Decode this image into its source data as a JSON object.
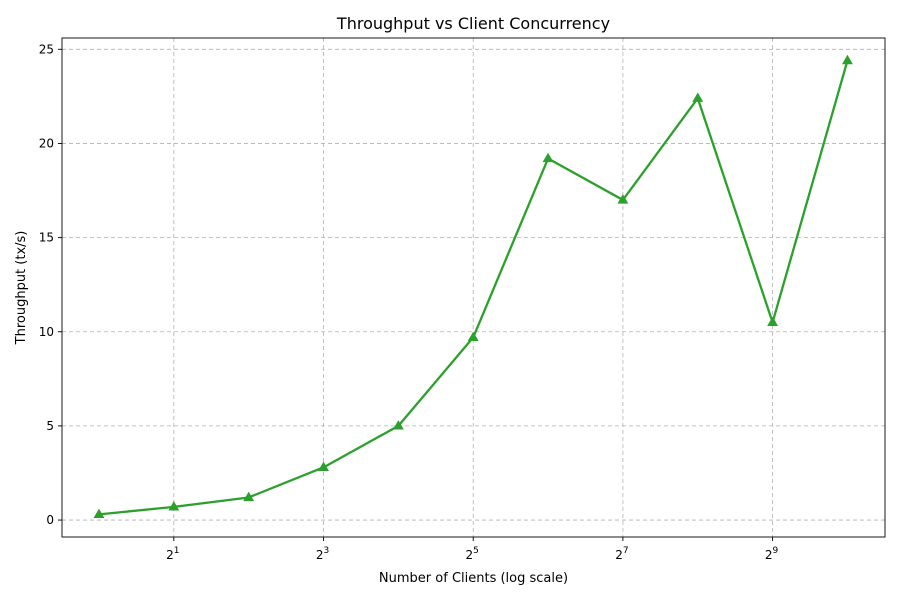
{
  "chart_data": {
    "type": "line",
    "title": "Throughput vs Client Concurrency",
    "xlabel": "Number of Clients (log scale)",
    "ylabel": "Throughput (tx/s)",
    "x_scale": "log2",
    "x_tick_base": "2",
    "x_ticks": [
      {
        "value": 2,
        "exponent": "1"
      },
      {
        "value": 8,
        "exponent": "3"
      },
      {
        "value": 32,
        "exponent": "5"
      },
      {
        "value": 128,
        "exponent": "7"
      },
      {
        "value": 512,
        "exponent": "9"
      }
    ],
    "y_ticks": [
      0,
      5,
      10,
      15,
      20,
      25
    ],
    "xlim": [
      0.71,
      1450
    ],
    "ylim": [
      -0.9,
      25.6
    ],
    "grid": true,
    "series": [
      {
        "color": "#2ca02c",
        "marker": "triangle",
        "x": [
          1,
          2,
          4,
          8,
          16,
          32,
          64,
          128,
          256,
          512,
          1024
        ],
        "y": [
          0.3,
          0.7,
          1.2,
          2.8,
          5.0,
          9.7,
          19.2,
          17.0,
          22.4,
          10.5,
          24.4
        ]
      }
    ]
  }
}
